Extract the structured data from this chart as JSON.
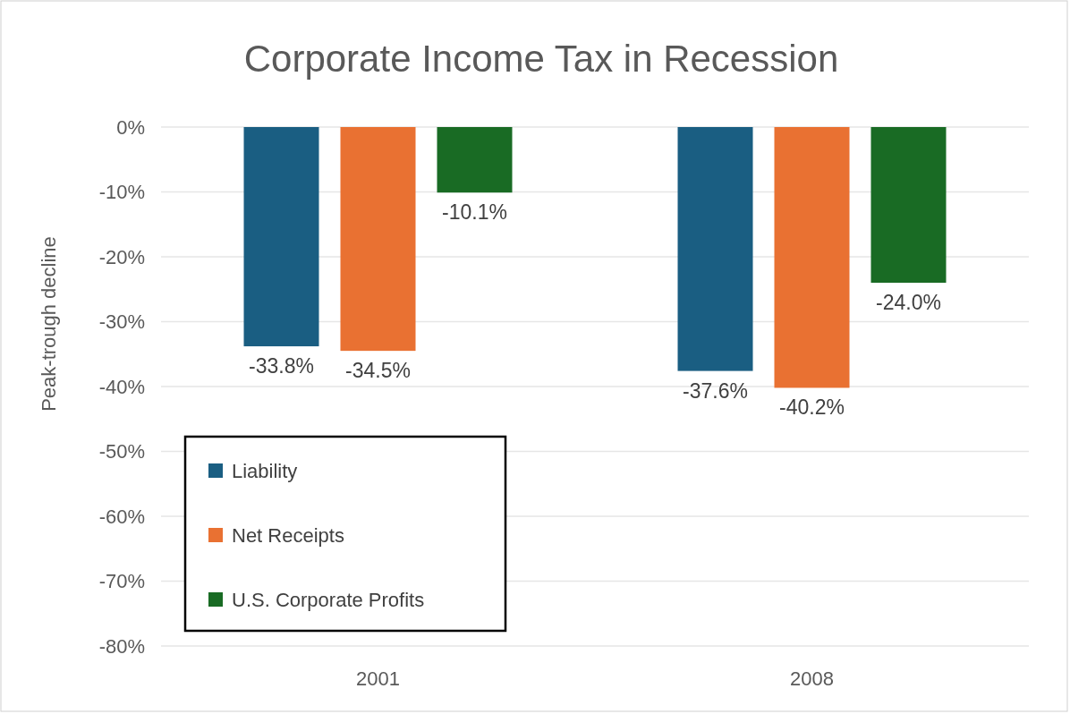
{
  "chart_data": {
    "type": "bar",
    "title": "Corporate Income Tax in Recession",
    "ylabel": "Peak-trough decline",
    "categories": [
      "2001",
      "2008"
    ],
    "series": [
      {
        "name": "Liability",
        "color": "#1a5e82",
        "values": [
          -33.8,
          -37.6
        ],
        "value_labels": [
          "-33.8%",
          "-37.6%"
        ]
      },
      {
        "name": "Net Receipts",
        "color": "#e97132",
        "values": [
          -34.5,
          -40.2
        ],
        "value_labels": [
          "-34.5%",
          "-40.2%"
        ]
      },
      {
        "name": "U.S. Corporate Profits",
        "color": "#196b24",
        "values": [
          -10.1,
          -24.0
        ],
        "value_labels": [
          "-10.1%",
          "-24.0%"
        ]
      }
    ],
    "ylim": [
      -80,
      0
    ],
    "yticks": [
      {
        "value": 0,
        "label": "0%"
      },
      {
        "value": -10,
        "label": "-10%"
      },
      {
        "value": -20,
        "label": "-20%"
      },
      {
        "value": -30,
        "label": "-30%"
      },
      {
        "value": -40,
        "label": "-40%"
      },
      {
        "value": -50,
        "label": "-50%"
      },
      {
        "value": -60,
        "label": "-60%"
      },
      {
        "value": -70,
        "label": "-70%"
      },
      {
        "value": -80,
        "label": "-80%"
      }
    ],
    "grid": "y",
    "legend": "bottom left"
  }
}
